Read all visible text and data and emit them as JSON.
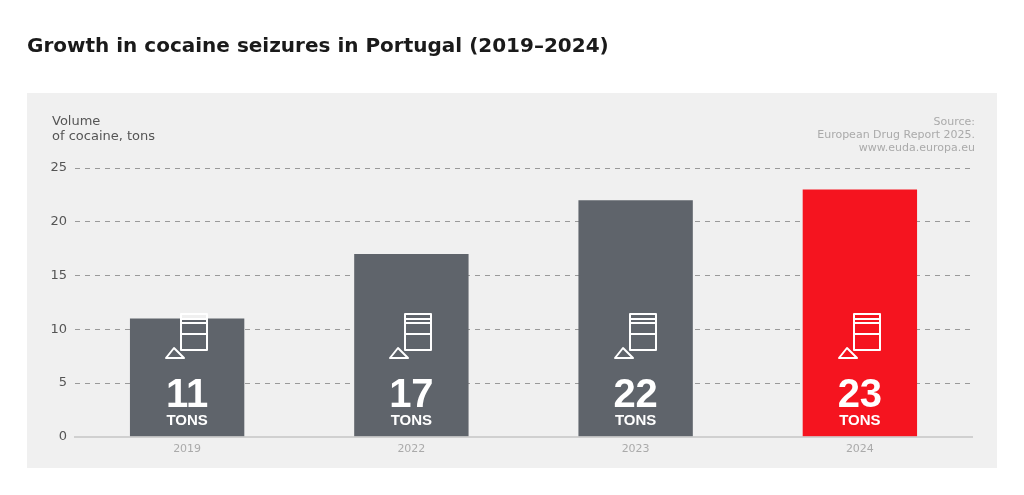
{
  "chart_data": {
    "type": "bar",
    "title": "Growth in cocaine seizures in Portugal (2019–2024)",
    "ylabel": "Volume\nof cocaine, tons",
    "annotations": [
      "Source:\nEuropean Drug Report 2025.\nwww.euda.europa.eu"
    ],
    "categories": [
      "2019",
      "2022",
      "2023",
      "2024"
    ],
    "values": [
      11,
      17,
      22,
      23
    ],
    "colors": [
      "#5f646b",
      "#5f646b",
      "#5f646b",
      "#f5141f"
    ],
    "value_labels": [
      "11 TONS",
      "17 TONS",
      "22 TONS",
      "23 TONS"
    ],
    "ylim": [
      0,
      25
    ],
    "yticks": [
      0,
      5,
      10,
      15,
      20,
      25
    ],
    "grid": "y"
  }
}
